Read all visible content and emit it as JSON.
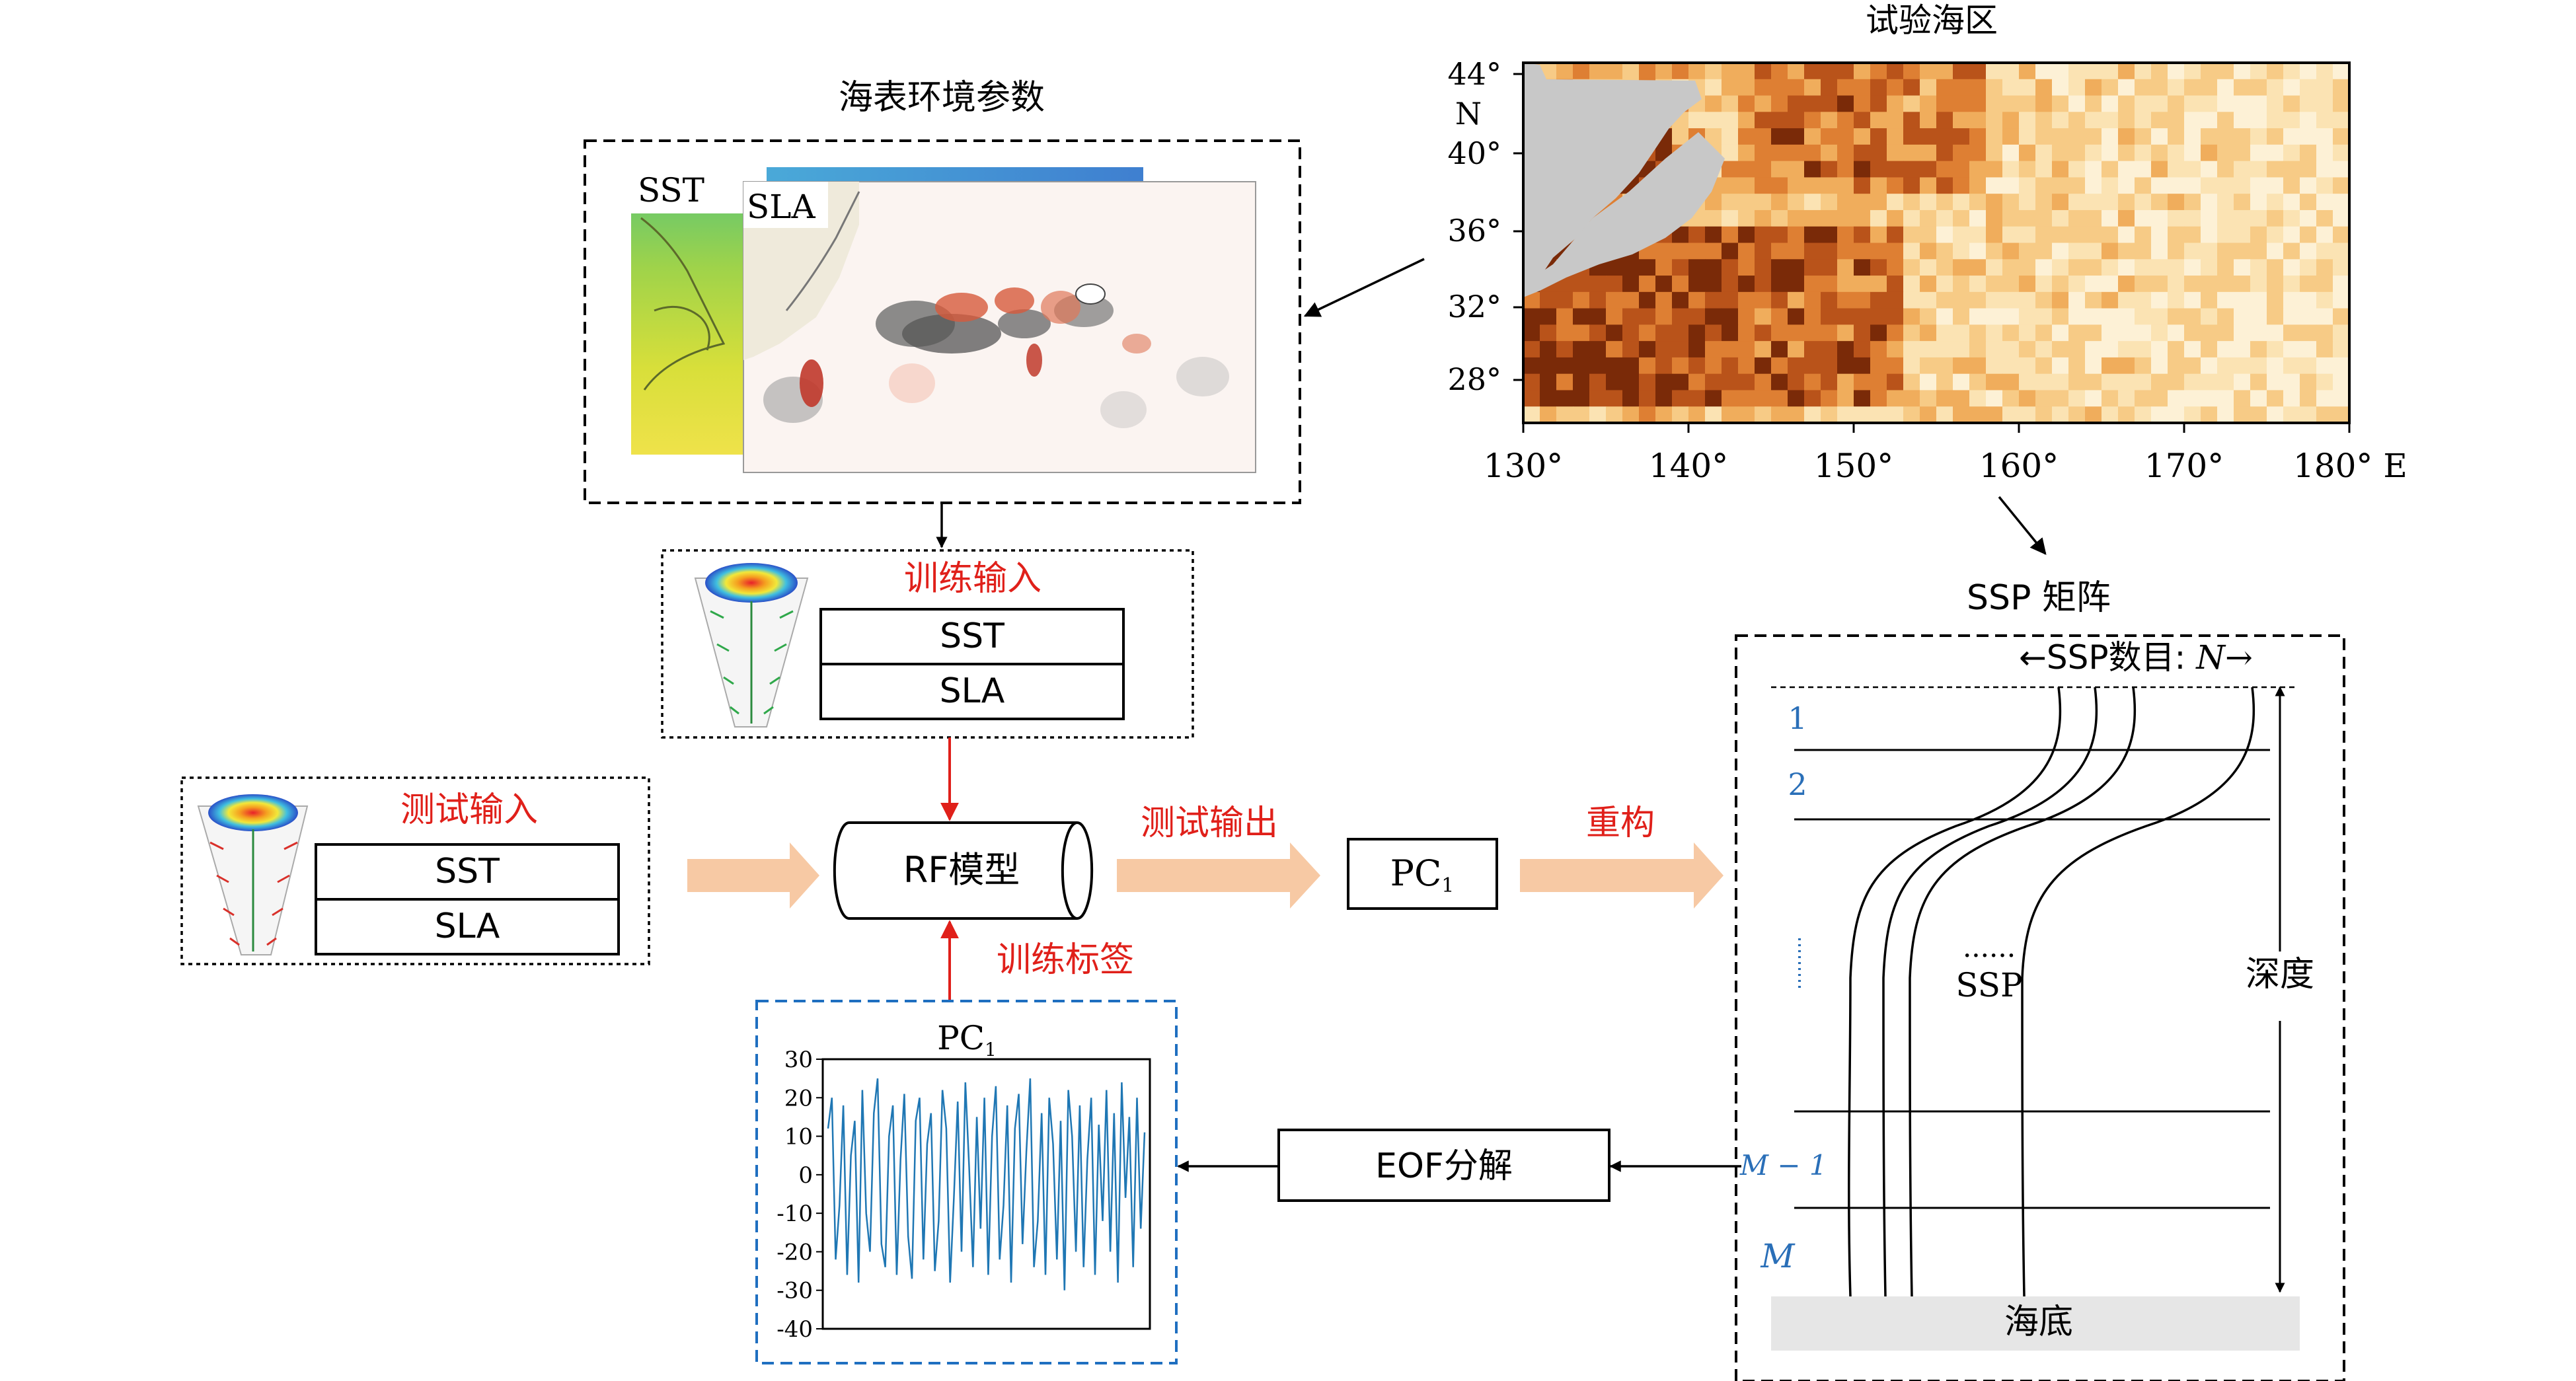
{
  "sea_area": {
    "title": "试验海区",
    "ylabel_unit": "N",
    "yticks": [
      "44°",
      "40°",
      "36°",
      "32°",
      "28°"
    ],
    "xticks": [
      "130°",
      "140°",
      "150°",
      "160°",
      "170°",
      "180° E"
    ]
  },
  "env": {
    "title": "海表环境参数",
    "sst_label": "SST",
    "sla_label": "SLA"
  },
  "train_input": {
    "title": "训练输入",
    "row1": "SST",
    "row2": "SLA"
  },
  "test_input": {
    "title": "测试输入",
    "row1": "SST",
    "row2": "SLA"
  },
  "model": {
    "label": "RF模型"
  },
  "test_output": {
    "label": "测试输出"
  },
  "pc_box": {
    "label": "PC",
    "sub": "1"
  },
  "reconstruct": {
    "label": "重构"
  },
  "train_label": {
    "label": "训练标签"
  },
  "ssp_matrix": {
    "title": "SSP 矩阵",
    "count_label": "←SSP数目: ",
    "count_var": "N",
    "count_arrow": "→",
    "row1": "1",
    "row2": "2",
    "row_m1": "M − 1",
    "row_m": "M",
    "ssp_dots": "......",
    "ssp_label": "SSP",
    "depth_label": "深度",
    "seafloor_label": "海底"
  },
  "eof": {
    "label": "EOF分解"
  },
  "colors": {
    "red_text": "#e0201a",
    "blue_dash": "#1f6fc0",
    "blue_text": "#2a6fb8",
    "peach_arrow": "#f7c9a4",
    "seafloor": "#e6e6e6",
    "series": "#1f77b4"
  },
  "chart_data": {
    "type": "line",
    "title": "PC",
    "title_sub": "1",
    "ylim": [
      -40,
      30
    ],
    "yticks": [
      30,
      20,
      10,
      0,
      -10,
      -20,
      -30,
      -40
    ],
    "series": [
      {
        "values": [
          12,
          20,
          -22,
          -8,
          18,
          -26,
          5,
          14,
          -28,
          22,
          -10,
          -20,
          16,
          25,
          -18,
          -24,
          10,
          18,
          -26,
          4,
          21,
          -16,
          -27,
          14,
          20,
          -22,
          8,
          16,
          -25,
          -12,
          22,
          12,
          -28,
          -6,
          19,
          -20,
          24,
          2,
          -24,
          15,
          -14,
          20,
          -26,
          10,
          23,
          -22,
          -8,
          18,
          -28,
          12,
          21,
          -18,
          6,
          25,
          -24,
          -12,
          16,
          -26,
          20,
          8,
          -22,
          14,
          -30,
          22,
          10,
          -20,
          18,
          -24,
          4,
          20,
          -26,
          13,
          -12,
          22,
          -20,
          16,
          -28,
          24,
          -6,
          15,
          -24,
          20,
          -14,
          11
        ]
      }
    ]
  }
}
